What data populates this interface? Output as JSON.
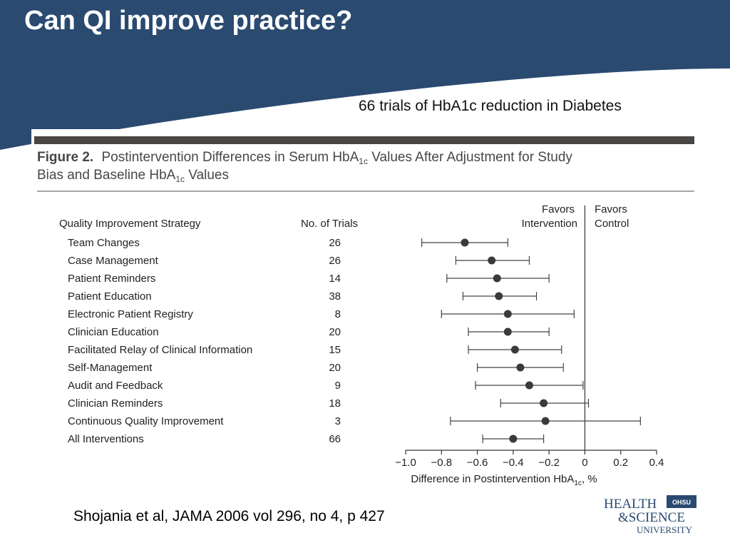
{
  "slide": {
    "title": "Can QI improve practice?",
    "subtitle": "66 trials of HbA1c reduction in Diabetes",
    "citation": "Shojania et al, JAMA 2006 vol 296, no 4, p 427"
  },
  "logo": {
    "line1": "HEALTH",
    "line2": "&SCIENCE",
    "line3": "UNIVERSITY",
    "badge": "OHSU"
  },
  "figure": {
    "label": "Figure 2.",
    "caption_line1": "Postintervention Differences in Serum HbA",
    "caption_sub1": "1c",
    "caption_line1_end": " Values After Adjustment for Study",
    "caption_line2": "Bias and Baseline HbA",
    "caption_sub2": "1c",
    "caption_line2_end": " Values"
  },
  "colors": {
    "banner": "#2a4a70",
    "figure_rule": "#4a4646",
    "marker": "#3a3a3a",
    "text": "#222222"
  },
  "chart_data": {
    "type": "scatter",
    "column_headers": {
      "strategy": "Quality Improvement Strategy",
      "trials": "No. of Trials"
    },
    "favors_left": [
      "Favors",
      "Intervention"
    ],
    "favors_right": [
      "Favors",
      "Control"
    ],
    "xlabel_main": "Difference in Postintervention HbA",
    "xlabel_sub": "1c",
    "xlabel_end": ", %",
    "xlim": [
      -1.0,
      0.4
    ],
    "ticks": [
      -1.0,
      -0.8,
      -0.6,
      -0.4,
      -0.2,
      0,
      0.2,
      0.4
    ],
    "tick_labels": [
      "−1.0",
      "−0.8",
      "−0.6",
      "−0.4",
      "−0.2",
      "0",
      "0.2",
      "0.4"
    ],
    "reference_line": 0,
    "rows": [
      {
        "strategy": "Team Changes",
        "trials": "26",
        "estimate": -0.67,
        "lower": -0.91,
        "upper": -0.43
      },
      {
        "strategy": "Case Management",
        "trials": "26",
        "estimate": -0.52,
        "lower": -0.72,
        "upper": -0.31
      },
      {
        "strategy": "Patient Reminders",
        "trials": "14",
        "estimate": -0.49,
        "lower": -0.77,
        "upper": -0.2
      },
      {
        "strategy": "Patient Education",
        "trials": "38",
        "estimate": -0.48,
        "lower": -0.68,
        "upper": -0.27
      },
      {
        "strategy": "Electronic Patient Registry",
        "trials": "8",
        "estimate": -0.43,
        "lower": -0.8,
        "upper": -0.06
      },
      {
        "strategy": "Clinician Education",
        "trials": "20",
        "estimate": -0.43,
        "lower": -0.65,
        "upper": -0.2
      },
      {
        "strategy": "Facilitated Relay of Clinical Information",
        "trials": "15",
        "estimate": -0.39,
        "lower": -0.65,
        "upper": -0.13
      },
      {
        "strategy": "Self-Management",
        "trials": "20",
        "estimate": -0.36,
        "lower": -0.6,
        "upper": -0.12
      },
      {
        "strategy": "Audit and Feedback",
        "trials": "9",
        "estimate": -0.31,
        "lower": -0.61,
        "upper": -0.01
      },
      {
        "strategy": "Clinician Reminders",
        "trials": "18",
        "estimate": -0.23,
        "lower": -0.47,
        "upper": 0.02
      },
      {
        "strategy": "Continuous Quality Improvement",
        "trials": "3",
        "estimate": -0.22,
        "lower": -0.75,
        "upper": 0.31
      },
      {
        "strategy": "All Interventions",
        "trials": "66",
        "estimate": -0.4,
        "lower": -0.57,
        "upper": -0.23
      }
    ]
  }
}
